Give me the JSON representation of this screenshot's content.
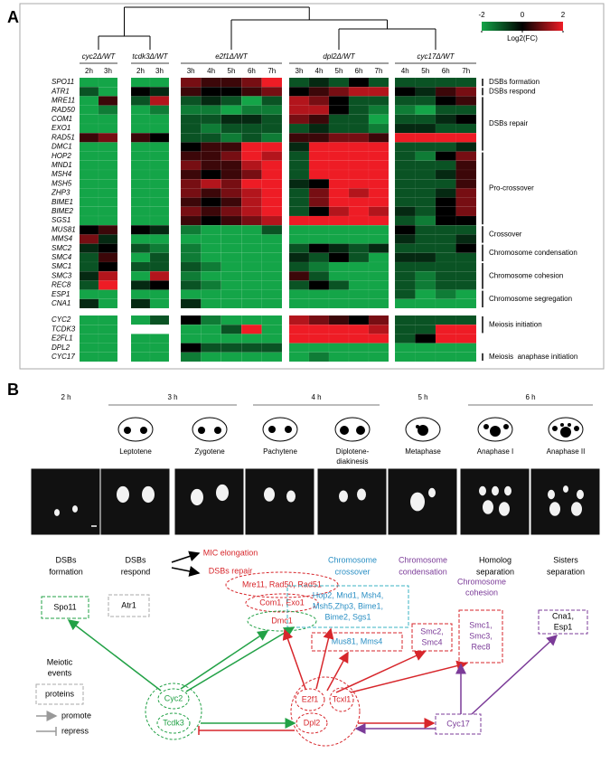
{
  "panel_a_label": "A",
  "chart_data": {
    "type": "heatmap",
    "groups": [
      {
        "name": "cyc2Δ/WT",
        "columns": [
          "2h",
          "3h"
        ]
      },
      {
        "name": "tcdk3Δ/WT",
        "columns": [
          "2h",
          "3h"
        ]
      },
      {
        "name": "e2f1Δ/WT",
        "columns": [
          "3h",
          "4h",
          "5h",
          "6h",
          "7h"
        ]
      },
      {
        "name": "dpl2Δ/WT",
        "columns": [
          "3h",
          "4h",
          "5h",
          "6h",
          "7h"
        ]
      },
      {
        "name": "cyc17Δ/WT",
        "columns": [
          "4h",
          "5h",
          "6h",
          "7h"
        ]
      }
    ],
    "rows": [
      "SPO11",
      "ATR1",
      "MRE11",
      "RAD50",
      "COM1",
      "EXO1",
      "RAD51",
      "DMC1",
      "HOP2",
      "MND1",
      "MSH4",
      "MSH5",
      "ZHP3",
      "BIME1",
      "BIME2",
      "SGS1",
      "MUS81",
      "MMS4",
      "SMC2",
      "SMC4",
      "SMC1",
      "SMC3",
      "REC8",
      "ESP1",
      "CNA1",
      "CYC2",
      "TCDK3",
      "E2FL1",
      "DPL2",
      "CYC17"
    ],
    "values": [
      [
        -2,
        -2,
        -2,
        -2,
        1,
        0.5,
        0.5,
        1,
        2,
        -1,
        -0.5,
        -1,
        0,
        -1,
        -1,
        -1,
        -1,
        -1
      ],
      [
        -1,
        -2,
        0,
        -0.5,
        0.5,
        0,
        0,
        0.5,
        1,
        0,
        0.5,
        1,
        1.5,
        1.5,
        0,
        -0.5,
        0.5,
        1
      ],
      [
        -2,
        0.5,
        -1,
        1.5,
        -1,
        -0.5,
        -1,
        -2,
        -1,
        1.5,
        1,
        0,
        -1,
        -1,
        -1,
        -1,
        0,
        0.5
      ],
      [
        -2,
        -1.5,
        -2,
        -1.5,
        -1.5,
        -1.5,
        -2,
        -1.5,
        -1.5,
        1.5,
        1.5,
        0,
        -1,
        -1.5,
        -1.5,
        -2,
        -1,
        -1
      ],
      [
        -2,
        -2,
        -2,
        -2,
        -1,
        -1,
        -0.5,
        -0.5,
        -1,
        1,
        0.5,
        -1,
        -1,
        -2,
        -1,
        -1,
        -0.5,
        0
      ],
      [
        -2,
        -2,
        -2,
        -2,
        -1,
        -1.5,
        -1,
        -1,
        -1,
        -1,
        -0.5,
        -1,
        -1,
        -1.5,
        -0.5,
        -0.5,
        -1,
        -1
      ],
      [
        0.5,
        1,
        0.5,
        0,
        -1,
        -1,
        -1.5,
        -1,
        -1.5,
        0.5,
        0.5,
        1,
        1,
        0.5,
        2,
        2,
        2,
        2
      ],
      [
        -2,
        -2,
        -2,
        -2,
        0,
        0.5,
        0.5,
        2,
        2,
        -0.5,
        2,
        2,
        2,
        2,
        -1,
        -1,
        -1,
        -0.5
      ],
      [
        -2,
        -2,
        -2,
        -2,
        0.5,
        0.5,
        1,
        2,
        1.5,
        -1,
        2,
        2,
        2,
        2,
        -1,
        -1.5,
        0,
        1
      ],
      [
        -2,
        -2,
        -2,
        -2,
        1,
        0.5,
        0.5,
        1.5,
        2,
        -1,
        2,
        2,
        2,
        2,
        -1,
        -1,
        -1,
        0.5
      ],
      [
        -2,
        -2,
        -2,
        -2,
        0.5,
        0,
        0.5,
        1,
        2,
        -1,
        2,
        2,
        2,
        2,
        -1,
        -1,
        -0.5,
        0.5
      ],
      [
        -2,
        -2,
        -2,
        -2,
        1,
        1.5,
        1,
        2,
        2,
        -0.5,
        0,
        2,
        2,
        2,
        -1,
        -1,
        -1,
        0.5
      ],
      [
        -2,
        -2,
        -2,
        -2,
        1,
        0.5,
        1,
        1.5,
        2,
        -1,
        1,
        2,
        1.5,
        2,
        -1,
        -1,
        -0.5,
        1
      ],
      [
        -2,
        -2,
        -2,
        -2,
        0.5,
        0,
        0.5,
        1.5,
        2,
        -1,
        1,
        2,
        2,
        2,
        -1,
        -1,
        0,
        1
      ],
      [
        -2,
        -2,
        -2,
        -2,
        1,
        0.5,
        1,
        1.5,
        2,
        -1,
        0,
        1.5,
        2,
        1.5,
        -0.5,
        -1,
        0,
        1
      ],
      [
        -2,
        -2,
        -2,
        -2,
        0.5,
        0,
        0.5,
        1,
        1.5,
        2,
        2,
        2,
        2,
        2,
        -1,
        -1.5,
        0,
        0
      ],
      [
        0,
        0.5,
        0,
        -0.5,
        -1.5,
        -2,
        -2,
        -2,
        -1,
        -2,
        -2,
        -2,
        -2,
        -2,
        0,
        -1,
        -1,
        -1
      ],
      [
        1,
        -0.5,
        -2,
        -2,
        -2,
        -2,
        -2,
        -2,
        -2,
        -2,
        -2,
        -2,
        -2,
        -2,
        -0.5,
        -1,
        -1,
        -0.5
      ],
      [
        -0.5,
        0,
        -1,
        -1.5,
        -1.5,
        -2,
        -2,
        -2,
        -2,
        -1,
        0,
        -0.5,
        -1,
        -0.5,
        -1,
        -1,
        -1,
        0
      ],
      [
        -1,
        0.5,
        -2,
        -1,
        -1.5,
        -2,
        -2,
        -2,
        -2,
        -0.5,
        -1,
        0,
        -1,
        -2,
        -0.5,
        -0.5,
        -1,
        -1
      ],
      [
        -1,
        0,
        -1,
        -1,
        -1,
        -1.5,
        -2,
        -2,
        -2,
        -1,
        -1.5,
        -2,
        -2,
        -2,
        -1,
        -1,
        -1,
        -1
      ],
      [
        -0.5,
        1.5,
        -2,
        1.5,
        -1.5,
        -2,
        -2,
        -2,
        -2,
        0.5,
        -1,
        -2,
        -2,
        -2,
        -1,
        -1.5,
        -1,
        -1
      ],
      [
        -1,
        2,
        -0.5,
        0,
        -1,
        -1.5,
        -2,
        -2,
        -2,
        -1,
        0,
        -1,
        -2,
        -2,
        -1,
        -1.5,
        -1,
        -1
      ],
      [
        -2,
        -2,
        -2,
        -2,
        -2,
        -2,
        -2,
        -2,
        -2,
        -2,
        -2,
        -2,
        -2,
        -2,
        -1,
        -2,
        -1.5,
        -2
      ],
      [
        -0.5,
        -2,
        -0.5,
        -2,
        -0.5,
        -2,
        -2,
        -2,
        -2,
        -2,
        -2,
        -2,
        -2,
        -2,
        -2,
        -2,
        -2,
        -2
      ],
      [
        -2,
        -2,
        -2,
        -1,
        0,
        -1.5,
        -2,
        -2,
        -2,
        1.5,
        1,
        0.5,
        0,
        1,
        -1,
        -1,
        -1,
        -1
      ],
      [
        -2,
        -2,
        null,
        null,
        -2,
        -2,
        -1,
        2,
        -2,
        2,
        2,
        2,
        2,
        1.5,
        -1,
        -1,
        2,
        2
      ],
      [
        -2,
        -2,
        -2,
        -2,
        -2,
        -2,
        -2,
        -2,
        -2,
        2,
        2,
        2,
        2,
        2,
        -1,
        0,
        2,
        2
      ],
      [
        -2,
        -2,
        -2,
        -2,
        0,
        -1,
        -1,
        -1,
        -1,
        -2,
        -2,
        -2,
        -2,
        -2,
        -2,
        -2,
        -2,
        -2
      ],
      [
        -2,
        -2,
        -2,
        -2,
        -1.5,
        -2,
        -2,
        -2,
        -2,
        -2,
        -1.5,
        -2,
        -2,
        -2,
        -2,
        -2,
        -2,
        -2
      ]
    ],
    "clim": [
      -2,
      2
    ],
    "colorbar_ticks": [
      -2,
      0,
      2
    ],
    "colorbar_label": "Log2(FC)",
    "colors": {
      "low": "#14a548",
      "mid": "#000000",
      "high": "#ee1c25",
      "missing": "#ffffff"
    },
    "annotations": [
      "DSBs formation",
      "DSBs respond",
      "DSBs repair",
      "Pro-crossover",
      "Crossover",
      "Chromosome condensation",
      "Chromosome cohesion",
      "Chromosome segregation",
      "Meiosis initiation",
      "Meiosis  anaphase initiation"
    ]
  },
  "panel_b": {
    "label": "B",
    "timepoints": [
      "2 h",
      "3 h",
      "4 h",
      "5 h",
      "6 h"
    ],
    "stages": [
      [
        "Leptotene"
      ],
      [
        "Zygotene"
      ],
      [
        "Pachytene"
      ],
      [
        "Diplotene-",
        "diakinesis"
      ],
      [
        "Metaphase"
      ],
      [
        "Anaphase I"
      ],
      [
        "Anaphase II"
      ]
    ],
    "events": [
      {
        "lines": [
          "DSBs",
          "formation"
        ],
        "color": "#000000"
      },
      {
        "lines": [
          "DSBs",
          "respond"
        ],
        "color": "#000000"
      },
      {
        "lines": [
          "MIC elongation"
        ],
        "color": "#d7262b"
      },
      {
        "lines": [
          "DSBs repair"
        ],
        "color": "#d7262b"
      },
      {
        "lines": [
          "Chromosome",
          "crossover"
        ],
        "color": "#2a8fc4"
      },
      {
        "lines": [
          "Chromosome",
          "condensation"
        ],
        "color": "#7b3b98"
      },
      {
        "lines": [
          "Homolog",
          "separation"
        ],
        "color": "#000000"
      },
      {
        "lines": [
          "Sisters",
          "separation"
        ],
        "color": "#000000"
      }
    ],
    "nodes": [
      {
        "lines": [
          "Spo11"
        ],
        "color": "#000000"
      },
      {
        "lines": [
          "Atr1"
        ],
        "color": "#000000"
      },
      {
        "lines": [
          "Mre11, Rad50, Rad51"
        ],
        "color": "#d7262b"
      },
      {
        "lines": [
          "Com1, Exo1"
        ],
        "color": "#d7262b"
      },
      {
        "lines": [
          "Dmc1"
        ],
        "color": "#d7262b"
      },
      {
        "lines": [
          "Hop2, Mnd1, Msh4,",
          "Msh5,Zhp3, Bime1,",
          "Bime2, Sgs1"
        ],
        "color": "#2a8fc4"
      },
      {
        "lines": [
          "Mus81, Mms4"
        ],
        "color": "#2a8fc4"
      },
      {
        "lines": [
          "Smc2,",
          "Smc4"
        ],
        "color": "#7b3b98"
      },
      {
        "lines": [
          "Chromosome",
          "cohesion"
        ],
        "color": "#7b3b98"
      },
      {
        "lines": [
          "Smc1,",
          "Smc3,",
          "Rec8"
        ],
        "color": "#7b3b98"
      },
      {
        "lines": [
          "Cna1,",
          "Esp1"
        ],
        "color": "#000000"
      },
      {
        "lines": [
          "Cyc2"
        ],
        "color": "#22a146"
      },
      {
        "lines": [
          "Tcdk3"
        ],
        "color": "#22a146"
      },
      {
        "lines": [
          "E2f1"
        ],
        "color": "#d7262b"
      },
      {
        "lines": [
          "Tcxl1"
        ],
        "color": "#d7262b"
      },
      {
        "lines": [
          "Dpl2"
        ],
        "color": "#d7262b"
      },
      {
        "lines": [
          "Cyc17"
        ],
        "color": "#7b3b98"
      }
    ],
    "legend": {
      "events": [
        "Meiotic",
        "events"
      ],
      "proteins": "proteins",
      "promote": "promote",
      "repress": "repress"
    }
  }
}
